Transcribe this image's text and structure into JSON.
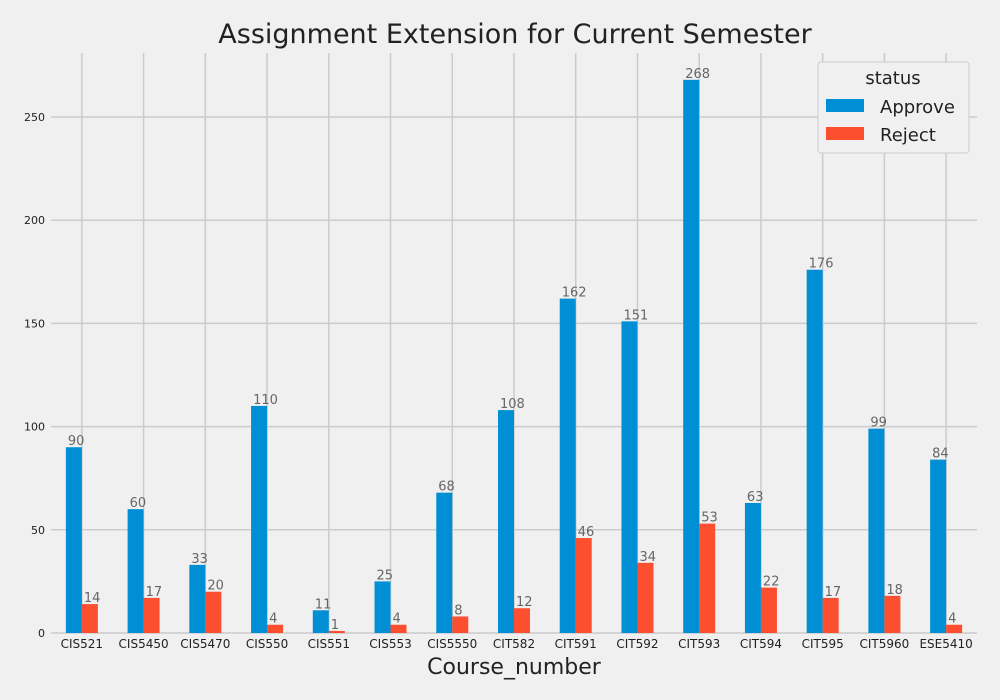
{
  "chart_data": {
    "type": "bar",
    "title": "Assignment Extension for Current Semester",
    "xlabel": "Course_number",
    "ylabel": "",
    "categories": [
      "CIS521",
      "CIS5450",
      "CIS5470",
      "CIS550",
      "CIS551",
      "CIS553",
      "CIS5550",
      "CIT582",
      "CIT591",
      "CIT592",
      "CIT593",
      "CIT594",
      "CIT595",
      "CIT5960",
      "ESE5410"
    ],
    "series": [
      {
        "name": "Approve",
        "color": "#008fd5",
        "values": [
          90,
          60,
          33,
          110,
          11,
          25,
          68,
          108,
          162,
          151,
          268,
          63,
          176,
          99,
          84
        ]
      },
      {
        "name": "Reject",
        "color": "#fc4f30",
        "values": [
          14,
          17,
          20,
          4,
          1,
          4,
          8,
          12,
          46,
          34,
          53,
          22,
          17,
          18,
          4
        ]
      }
    ],
    "yticks": [
      0,
      50,
      100,
      150,
      200,
      250
    ],
    "ylim": [
      0,
      281
    ],
    "grid": true,
    "legend": {
      "title": "status",
      "position": "top-right"
    }
  }
}
